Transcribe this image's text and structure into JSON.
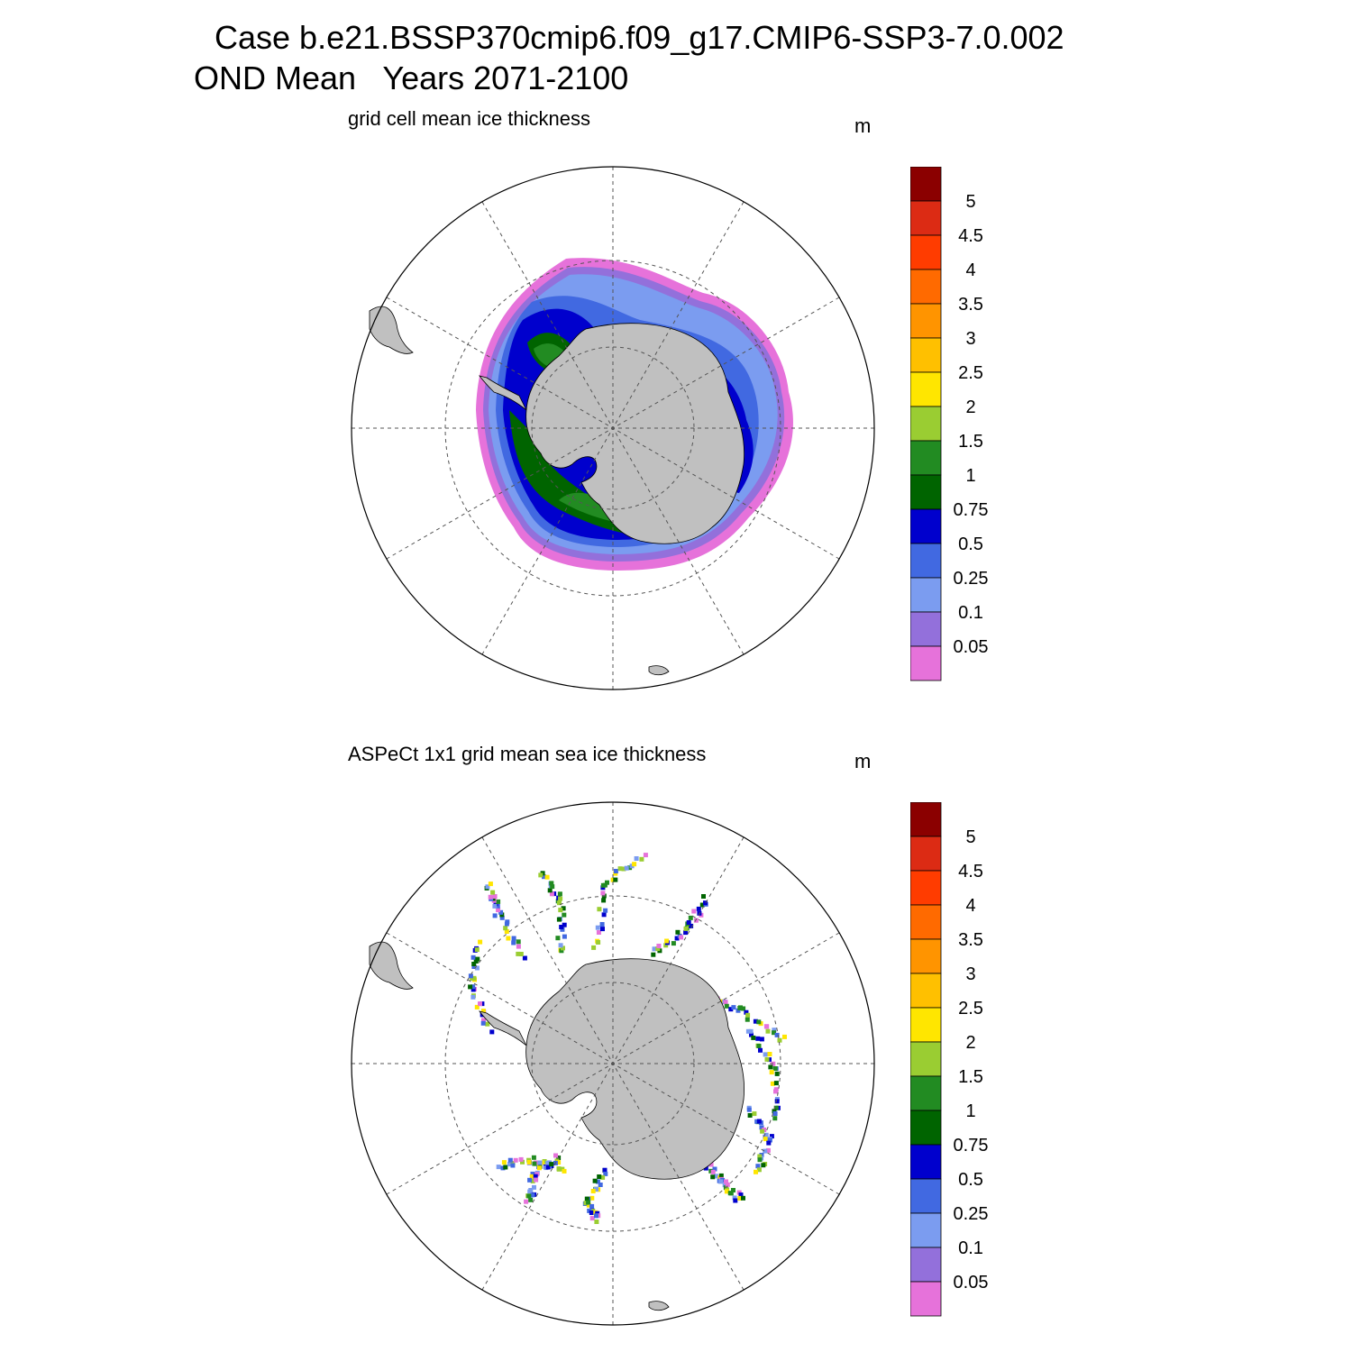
{
  "header": {
    "title_line1": "Case b.e21.BSSP370cmip6.f09_g17.CMIP6-SSP3-7.0.002",
    "title_line2": "OND Mean   Years 2071-2100"
  },
  "panels": [
    {
      "title": "grid cell mean ice thickness",
      "units": "m"
    },
    {
      "title": "ASPeCt 1x1 grid mean sea ice thickness",
      "units": "m"
    }
  ],
  "colorbar": {
    "labels": [
      "5",
      "4.5",
      "4",
      "3.5",
      "3",
      "2.5",
      "2",
      "1.5",
      "1",
      "0.75",
      "0.5",
      "0.25",
      "0.1",
      "0.05"
    ],
    "colors": [
      "#8b0000",
      "#dc2b14",
      "#ff3c00",
      "#ff6a00",
      "#ff9400",
      "#ffc000",
      "#ffe600",
      "#9acd32",
      "#228b22",
      "#006400",
      "#0000cd",
      "#4169e1",
      "#7b9cf0",
      "#9370db",
      "#e672da"
    ]
  },
  "map": {
    "projection": "south polar stereographic",
    "land_color": "#c0c0c0",
    "grid_lines": "dashed",
    "parallel_rings": 2,
    "meridians": 12
  }
}
